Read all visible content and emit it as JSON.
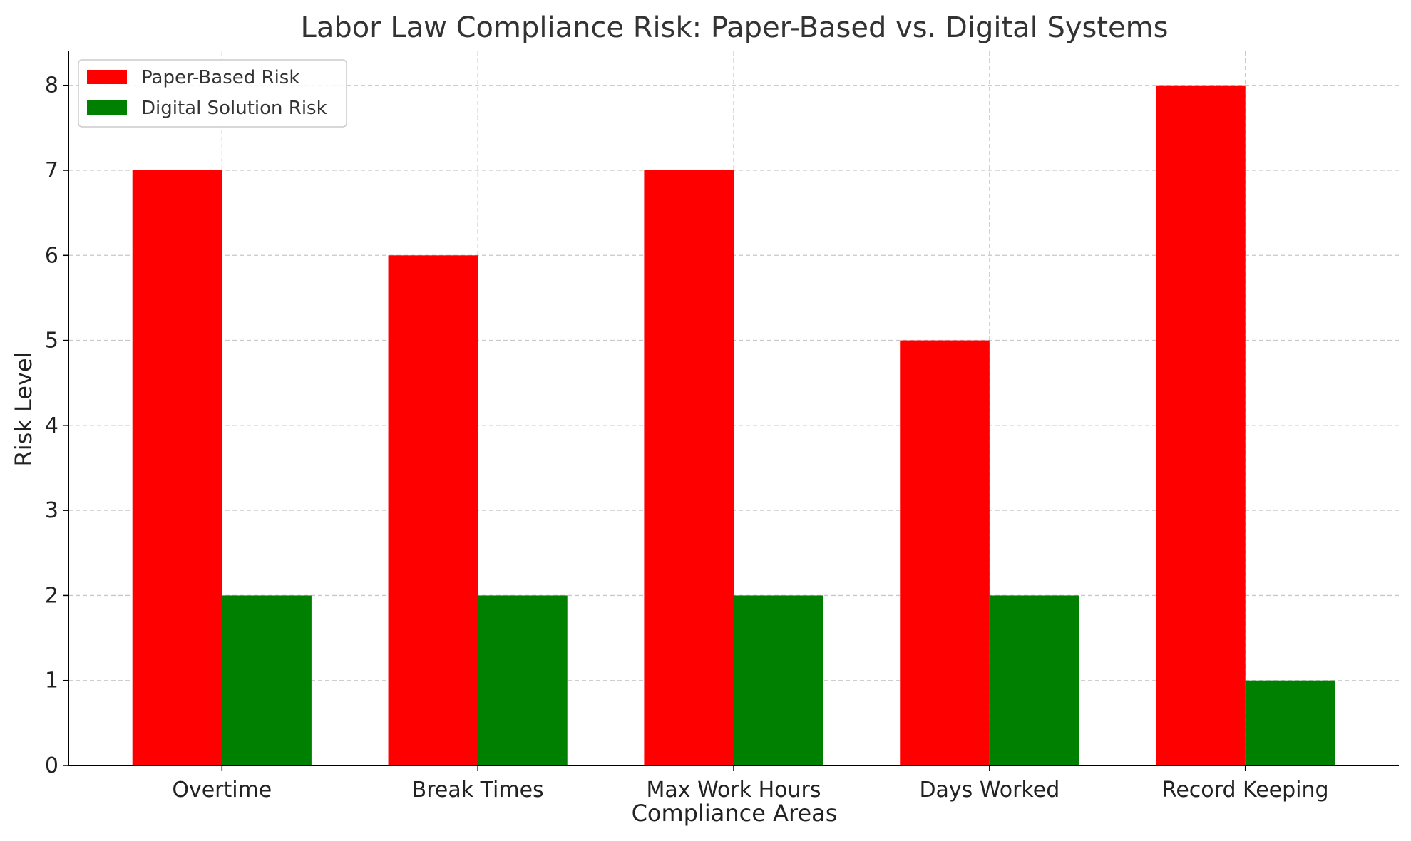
{
  "chart_data": {
    "type": "bar",
    "title": "Labor Law Compliance Risk: Paper-Based vs. Digital Systems",
    "xlabel": "Compliance Areas",
    "ylabel": "Risk Level",
    "categories": [
      "Overtime",
      "Break Times",
      "Max Work Hours",
      "Days Worked",
      "Record Keeping"
    ],
    "series": [
      {
        "name": "Paper-Based Risk",
        "color": "#ff0000",
        "values": [
          7,
          6,
          7,
          5,
          8
        ]
      },
      {
        "name": "Digital Solution Risk",
        "color": "#008000",
        "values": [
          2,
          2,
          2,
          2,
          1
        ]
      }
    ],
    "yticks": [
      "0",
      "1",
      "2",
      "3",
      "4",
      "5",
      "6",
      "7",
      "8"
    ],
    "ylim": [
      0,
      8.4
    ],
    "grid": true,
    "legend_position": "top-left"
  }
}
